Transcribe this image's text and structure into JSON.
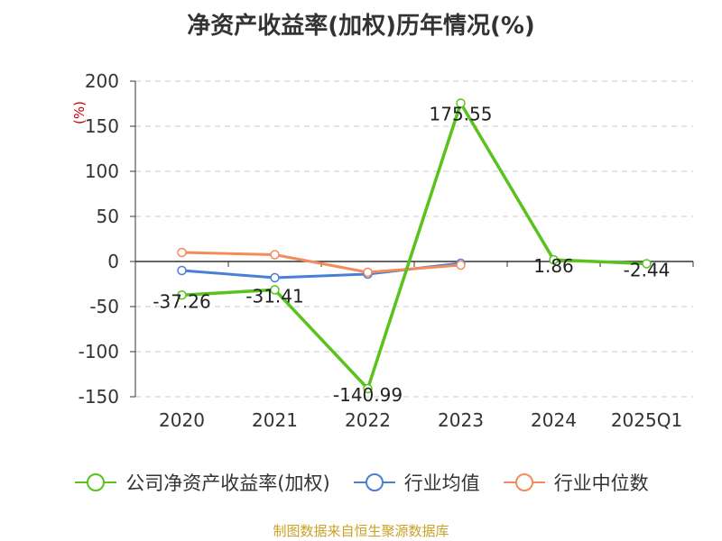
{
  "title": "净资产收益率(加权)历年情况(%)",
  "unit": "(%)",
  "source": "制图数据来自恒生聚源数据库",
  "chart_data": {
    "type": "line",
    "categories": [
      "2020",
      "2021",
      "2022",
      "2023",
      "2024",
      "2025Q1"
    ],
    "ylim": [
      -150,
      200
    ],
    "yticks": [
      200,
      150,
      100,
      50,
      0,
      -50,
      -100,
      -150
    ],
    "grid": true,
    "legend_position": "bottom",
    "series": [
      {
        "name": "公司净资产收益率(加权)",
        "color": "#5ac21c",
        "values": [
          -37.26,
          -31.41,
          -140.99,
          175.55,
          1.86,
          -2.44
        ],
        "labels": [
          "-37.26",
          "-31.41",
          "-140.99",
          "175.55",
          "1.86",
          "-2.44"
        ]
      },
      {
        "name": "行业均值",
        "color": "#4a7fd6",
        "values": [
          -10,
          -18,
          -14,
          -2,
          null,
          null
        ]
      },
      {
        "name": "行业中位数",
        "color": "#f28c5a",
        "values": [
          10,
          7.5,
          -12,
          -4,
          null,
          null
        ]
      }
    ]
  }
}
